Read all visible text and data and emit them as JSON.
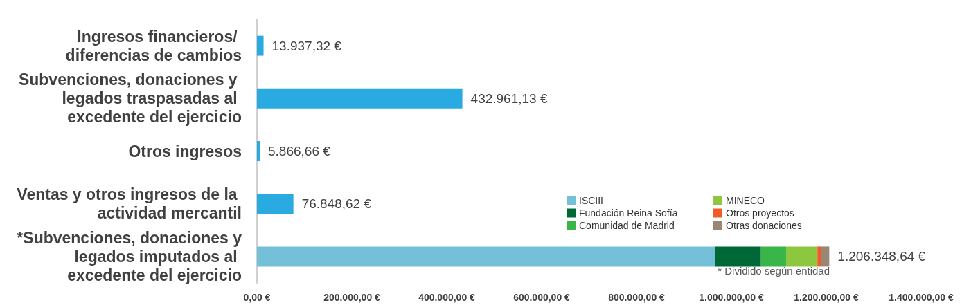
{
  "chart_data": {
    "type": "bar",
    "orientation": "horizontal",
    "stacked": true,
    "categories": [
      "Ingresos financieros/ diferencias de cambios",
      "Subvenciones, donaciones y legados traspasadas al excedente del ejercicio",
      "Otros ingresos",
      "Ventas y otros ingresos de la actividad mercantil",
      "*Subvenciones, donaciones y legados imputados al excedente del ejercicio"
    ],
    "series": [
      {
        "color": "#29abe2",
        "values": [
          13937.32,
          432961.13,
          5866.66,
          76848.62,
          null
        ],
        "value_labels": [
          "13.937,32 €",
          "432.961,13 €",
          "5.866,66 €",
          "76.848,62 €",
          null
        ]
      },
      {
        "name": "ISCIII",
        "color": "#74c0d9",
        "values": [
          null,
          null,
          null,
          null,
          966348.64
        ]
      },
      {
        "name": "Fundación Reina Sofía",
        "color": "#006837",
        "values": [
          null,
          null,
          null,
          null,
          96000
        ]
      },
      {
        "name": "Comunidad de Madrid",
        "color": "#39b54a",
        "values": [
          null,
          null,
          null,
          null,
          53000
        ]
      },
      {
        "name": "MINECO",
        "color": "#8dc63f",
        "values": [
          null,
          null,
          null,
          null,
          66000
        ]
      },
      {
        "name": "Otros proyectos",
        "color": "#f15a29",
        "values": [
          null,
          null,
          null,
          null,
          8000
        ]
      },
      {
        "name": "Otras donaciones",
        "color": "#998675",
        "values": [
          null,
          null,
          null,
          null,
          17000
        ]
      }
    ],
    "totals": [
      null,
      null,
      null,
      null,
      "1.206.348,64 €"
    ],
    "xlim": [
      0,
      1400000
    ],
    "xticks": [
      {
        "value": 0,
        "label": "0,00 €"
      },
      {
        "value": 200000,
        "label": "200.000,00 €"
      },
      {
        "value": 400000,
        "label": "400.000,00 €"
      },
      {
        "value": 600000,
        "label": "600.000,00 €"
      },
      {
        "value": 800000,
        "label": "800.000,00 €"
      },
      {
        "value": 1000000,
        "label": "1.000.000,00 €"
      },
      {
        "value": 1200000,
        "label": "1.200.000,00 €"
      },
      {
        "value": 1400000,
        "label": "1.400.000,00 €"
      }
    ],
    "annotations": [
      "* Dividido según entidad"
    ],
    "legend": "bottom right",
    "grid": false
  }
}
